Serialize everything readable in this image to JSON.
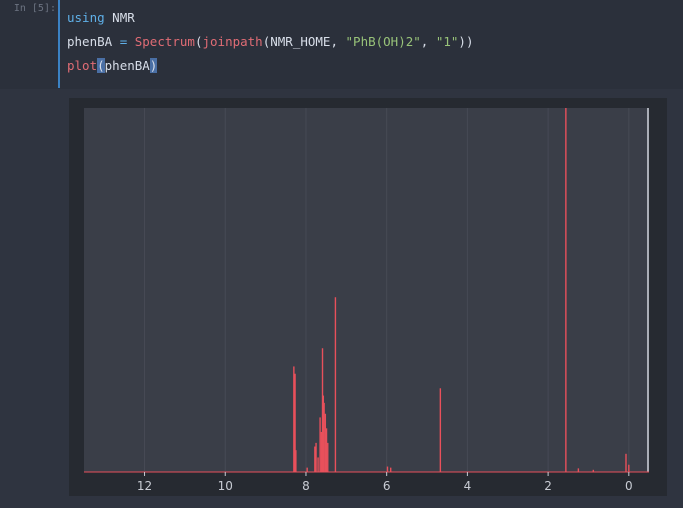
{
  "cell": {
    "prompt": "In [5]:",
    "code": {
      "line1_kw": "using",
      "line1_rest": " NMR",
      "line2_var": "phenBA ",
      "line2_eq": "=",
      "line2_sp": " ",
      "line2_fn1": "Spectrum",
      "line2_p1": "(",
      "line2_fn2": "joinpath",
      "line2_args_a": "(NMR_HOME, ",
      "line2_str1": "\"PhB(OH)2\"",
      "line2_comma": ", ",
      "line2_str2": "\"1\"",
      "line2_close": "))",
      "line3_fn": "plot",
      "line3_open": "(",
      "line3_arg": "phenBA",
      "line3_close": ")"
    }
  },
  "chart_data": {
    "type": "line",
    "title": "",
    "xlabel": "",
    "ylabel": "",
    "x_reversed": true,
    "xlim": [
      13.5,
      -0.5
    ],
    "ylim": [
      0,
      1.0
    ],
    "xticks": [
      12,
      10,
      8,
      6,
      4,
      2,
      0
    ],
    "grid": true,
    "colors": {
      "series": "#e8505b",
      "plot_bg": "#3a3e48",
      "frame_bg": "#262a31",
      "grid": "#464a55",
      "tick_text": "#c8ccd4",
      "baseline": "#e8505b",
      "right_axis": "#d0d4dc"
    },
    "series": [
      {
        "peaks": [
          {
            "x": 8.3,
            "y": 0.29
          },
          {
            "x": 8.27,
            "y": 0.27
          },
          {
            "x": 8.25,
            "y": 0.06
          },
          {
            "x": 7.97,
            "y": 0.012
          },
          {
            "x": 7.78,
            "y": 0.07
          },
          {
            "x": 7.75,
            "y": 0.08
          },
          {
            "x": 7.7,
            "y": 0.04
          },
          {
            "x": 7.65,
            "y": 0.15
          },
          {
            "x": 7.62,
            "y": 0.11
          },
          {
            "x": 7.59,
            "y": 0.34
          },
          {
            "x": 7.57,
            "y": 0.21
          },
          {
            "x": 7.55,
            "y": 0.19
          },
          {
            "x": 7.52,
            "y": 0.16
          },
          {
            "x": 7.49,
            "y": 0.12
          },
          {
            "x": 7.46,
            "y": 0.08
          },
          {
            "x": 7.27,
            "y": 0.48
          },
          {
            "x": 5.98,
            "y": 0.015
          },
          {
            "x": 5.9,
            "y": 0.012
          },
          {
            "x": 4.67,
            "y": 0.23
          },
          {
            "x": 1.56,
            "y": 1.0
          },
          {
            "x": 1.25,
            "y": 0.01
          },
          {
            "x": 0.88,
            "y": 0.006
          },
          {
            "x": 0.07,
            "y": 0.05
          },
          {
            "x": 0.0,
            "y": 0.02
          }
        ]
      }
    ]
  }
}
